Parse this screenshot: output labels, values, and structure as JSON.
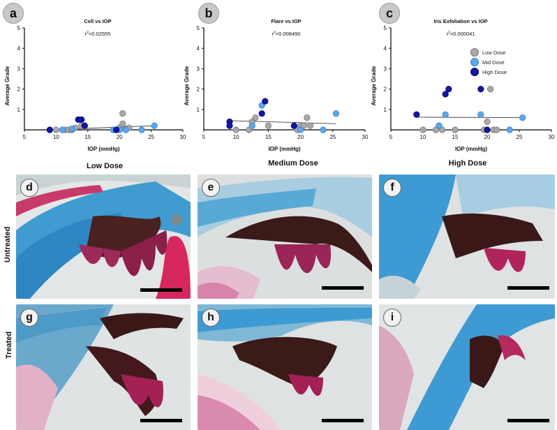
{
  "panels": {
    "a": {
      "letter": "a",
      "title": "Cell vs IOP",
      "r2": "=0.02555"
    },
    "b": {
      "letter": "b",
      "title": "Flare vs IOP",
      "r2": "=0.008490"
    },
    "c": {
      "letter": "c",
      "title": "Iris Exfoliation vs  IOP",
      "r2": "=0.000041"
    }
  },
  "r2_prefix": "r",
  "r2_sup": "2",
  "legend": [
    {
      "label": "Low Dose",
      "color": "#a9a9a9"
    },
    {
      "label": "Mid Dose",
      "color": "#5aa8ee"
    },
    {
      "label": "High Dose",
      "color": "#1414a8"
    }
  ],
  "column_labels": {
    "low": "Low Dose",
    "medium": "Medium Dose",
    "high": "High Dose"
  },
  "row_labels": {
    "untreated": "Untreated",
    "treated": "Treated"
  },
  "tiles": [
    "d",
    "e",
    "f",
    "g",
    "h",
    "i"
  ],
  "chart_data": [
    {
      "type": "scatter",
      "title": "Cell vs IOP",
      "xlabel": "IOP (mmHg)",
      "ylabel": "Average Grade",
      "xlim": [
        5,
        30
      ],
      "ylim": [
        0,
        5
      ],
      "xticks": [
        "5",
        "10",
        "15",
        "20",
        "25",
        "30"
      ],
      "yticks": [
        "1",
        "2",
        "3",
        "4",
        "5"
      ],
      "regression": {
        "x": [
          9,
          25.5
        ],
        "y": [
          0.0,
          0.2
        ]
      },
      "series": [
        {
          "name": "Low Dose",
          "points": [
            [
              10,
              0
            ],
            [
              11.5,
              0
            ],
            [
              12,
              0
            ],
            [
              12.5,
              0
            ],
            [
              13,
              0.1
            ],
            [
              14,
              0.2
            ],
            [
              19.5,
              0
            ],
            [
              20,
              0.1
            ],
            [
              20.5,
              0.3
            ],
            [
              20.5,
              0.8
            ],
            [
              21,
              0.05
            ],
            [
              21.5,
              0.1
            ]
          ]
        },
        {
          "name": "Mid Dose",
          "points": [
            [
              11,
              0
            ],
            [
              12.5,
              0.05
            ],
            [
              13.5,
              0.5
            ],
            [
              14.5,
              0.2
            ],
            [
              19,
              0
            ],
            [
              20,
              0
            ],
            [
              21,
              0
            ],
            [
              23.5,
              0
            ],
            [
              25.5,
              0.2
            ]
          ]
        },
        {
          "name": "High Dose",
          "points": [
            [
              9,
              0
            ],
            [
              13.5,
              0.5
            ],
            [
              14,
              0.5
            ],
            [
              14.5,
              0.2
            ],
            [
              19.5,
              0
            ]
          ]
        }
      ]
    },
    {
      "type": "scatter",
      "title": "Flare vs IOP",
      "xlabel": "IOP (mmHg)",
      "ylabel": "Average Grade",
      "xlim": [
        5,
        30
      ],
      "ylim": [
        0,
        5
      ],
      "xticks": [
        "5",
        "10",
        "15",
        "20",
        "25",
        "30"
      ],
      "yticks": [
        "1",
        "2",
        "3",
        "4",
        "5"
      ],
      "regression": {
        "x": [
          9,
          25.5
        ],
        "y": [
          0.45,
          0.3
        ]
      },
      "series": [
        {
          "name": "Low Dose",
          "points": [
            [
              10,
              0
            ],
            [
              12,
              0
            ],
            [
              12.5,
              0.4
            ],
            [
              13,
              0.6
            ],
            [
              15,
              0.2
            ],
            [
              19.5,
              0
            ],
            [
              20,
              0.2
            ],
            [
              20.5,
              0.2
            ],
            [
              21,
              0.6
            ],
            [
              21.5,
              0.2
            ]
          ]
        },
        {
          "name": "Mid Dose",
          "points": [
            [
              12.5,
              0.2
            ],
            [
              14,
              1.2
            ],
            [
              20,
              0
            ],
            [
              23.5,
              0
            ],
            [
              25.5,
              0.8
            ]
          ]
        },
        {
          "name": "High Dose",
          "points": [
            [
              9,
              0.4
            ],
            [
              9,
              0.2
            ],
            [
              14,
              0.8
            ],
            [
              14.5,
              1.4
            ],
            [
              19,
              0.2
            ]
          ]
        }
      ]
    },
    {
      "type": "scatter",
      "title": "Iris Exfoliation vs  IOP",
      "xlabel": "IOP (mmHg)",
      "ylabel": "Average Grade",
      "xlim": [
        5,
        30
      ],
      "ylim": [
        0,
        5
      ],
      "xticks": [
        "5",
        "10",
        "15",
        "20",
        "25",
        "30"
      ],
      "yticks": [
        "1",
        "2",
        "3",
        "4",
        "5"
      ],
      "regression": {
        "x": [
          9,
          25.5
        ],
        "y": [
          0.62,
          0.6
        ]
      },
      "series": [
        {
          "name": "Low Dose",
          "points": [
            [
              10,
              0
            ],
            [
              12,
              0
            ],
            [
              12.5,
              0.2
            ],
            [
              13,
              0
            ],
            [
              15,
              0
            ],
            [
              19.5,
              0
            ],
            [
              20,
              0.4
            ],
            [
              20.5,
              2
            ],
            [
              21,
              0
            ],
            [
              21.5,
              0
            ]
          ]
        },
        {
          "name": "Mid Dose",
          "points": [
            [
              12.5,
              0.2
            ],
            [
              13.5,
              0.75
            ],
            [
              19,
              0.75
            ],
            [
              20,
              0
            ],
            [
              23.5,
              0
            ],
            [
              25.5,
              0.6
            ]
          ]
        },
        {
          "name": "High Dose",
          "points": [
            [
              9,
              0.75
            ],
            [
              13.5,
              1.75
            ],
            [
              14,
              2
            ],
            [
              19,
              2
            ],
            [
              20,
              0
            ]
          ]
        }
      ]
    }
  ]
}
